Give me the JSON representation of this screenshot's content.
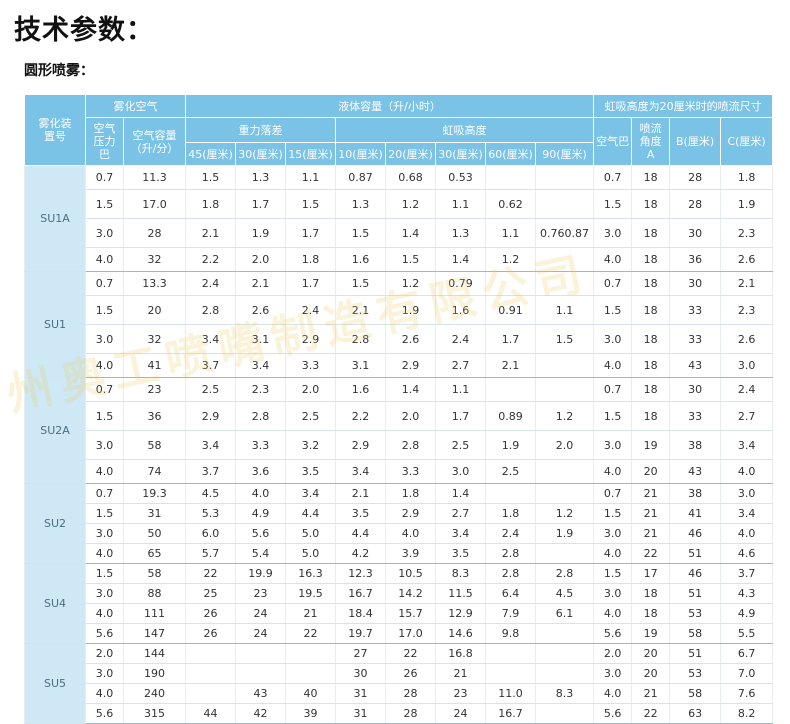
{
  "title": "技术参数：",
  "subtitle": "圆形喷雾：",
  "watermark": "州奥工喷嘴制造有限公司",
  "colors": {
    "header": "#7ac2e6",
    "model_cell": "#cfe8f5",
    "model_text": "#4a6f86"
  },
  "header": {
    "model": "雾化装置号",
    "air_group": "雾化空气",
    "liquid_group": "液体容量（升/小时）",
    "siphon_group": "虹吸高度为20厘米时的喷流尺寸",
    "air_pressure": "空气压力巴",
    "air_volume": "空气容量（升/分）",
    "gravity": "重力落差",
    "siphon": "虹吸高度",
    "gravity_cols": [
      "45(厘米)",
      "30(厘米)",
      "15(厘米)"
    ],
    "siphon_cols": [
      "10(厘米)",
      "20(厘米)",
      "30(厘米)",
      "60(厘米)",
      "90(厘米)"
    ],
    "spray_cols": [
      "空气巴",
      "喷流角度A",
      "B(厘米)",
      "C(厘米)"
    ]
  },
  "groups": [
    {
      "model": "SU1A",
      "rows": [
        [
          "0.7",
          "11.3",
          "1.5",
          "1.3",
          "1.1",
          "0.87",
          "0.68",
          "0.53",
          "",
          "",
          "0.7",
          "18",
          "28",
          "1.8"
        ],
        [
          "1.5",
          "17.0",
          "1.8",
          "1.7",
          "1.5",
          "1.3",
          "1.2",
          "1.1",
          "0.62",
          "",
          "1.5",
          "18",
          "28",
          "1.9"
        ],
        [
          "3.0",
          "28",
          "2.1",
          "1.9",
          "1.7",
          "1.5",
          "1.4",
          "1.3",
          "1.1",
          "0.760.87",
          "3.0",
          "18",
          "30",
          "2.3"
        ],
        [
          "4.0",
          "32",
          "2.2",
          "2.0",
          "1.8",
          "1.6",
          "1.5",
          "1.4",
          "1.2",
          "",
          "4.0",
          "18",
          "36",
          "2.6"
        ]
      ]
    },
    {
      "model": "SU1",
      "rows": [
        [
          "0.7",
          "13.3",
          "2.4",
          "2.1",
          "1.7",
          "1.5",
          "1.2",
          "0.79",
          "",
          "",
          "0.7",
          "18",
          "30",
          "2.1"
        ],
        [
          "1.5",
          "20",
          "2.8",
          "2.6",
          "2.4",
          "2.1",
          "1.9",
          "1.6",
          "0.91",
          "1.1",
          "1.5",
          "18",
          "33",
          "2.3"
        ],
        [
          "3.0",
          "32",
          "3.4",
          "3.1",
          "2.9",
          "2.8",
          "2.6",
          "2.4",
          "1.7",
          "1.5",
          "3.0",
          "18",
          "33",
          "2.6"
        ],
        [
          "4.0",
          "41",
          "3.7",
          "3.4",
          "3.3",
          "3.1",
          "2.9",
          "2.7",
          "2.1",
          "",
          "4.0",
          "18",
          "43",
          "3.0"
        ]
      ]
    },
    {
      "model": "SU2A",
      "rows": [
        [
          "0.7",
          "23",
          "2.5",
          "2.3",
          "2.0",
          "1.6",
          "1.4",
          "1.1",
          "",
          "",
          "0.7",
          "18",
          "30",
          "2.4"
        ],
        [
          "1.5",
          "36",
          "2.9",
          "2.8",
          "2.5",
          "2.2",
          "2.0",
          "1.7",
          "0.89",
          "1.2",
          "1.5",
          "18",
          "33",
          "2.7"
        ],
        [
          "3.0",
          "58",
          "3.4",
          "3.3",
          "3.2",
          "2.9",
          "2.8",
          "2.5",
          "1.9",
          "2.0",
          "3.0",
          "19",
          "38",
          "3.4"
        ],
        [
          "4.0",
          "74",
          "3.7",
          "3.6",
          "3.5",
          "3.4",
          "3.3",
          "3.0",
          "2.5",
          "",
          "4.0",
          "20",
          "43",
          "4.0"
        ]
      ]
    },
    {
      "model": "SU2",
      "rows": [
        [
          "0.7",
          "19.3",
          "4.5",
          "4.0",
          "3.4",
          "2.1",
          "1.8",
          "1.4",
          "",
          "",
          "0.7",
          "21",
          "38",
          "3.0"
        ],
        [
          "1.5",
          "31",
          "5.3",
          "4.9",
          "4.4",
          "3.5",
          "2.9",
          "2.7",
          "1.8",
          "1.2",
          "1.5",
          "21",
          "41",
          "3.4"
        ],
        [
          "3.0",
          "50",
          "6.0",
          "5.6",
          "5.0",
          "4.4",
          "4.0",
          "3.4",
          "2.4",
          "1.9",
          "3.0",
          "21",
          "46",
          "4.0"
        ],
        [
          "4.0",
          "65",
          "5.7",
          "5.4",
          "5.0",
          "4.2",
          "3.9",
          "3.5",
          "2.8",
          "",
          "4.0",
          "22",
          "51",
          "4.6"
        ]
      ]
    },
    {
      "model": "SU4",
      "rows": [
        [
          "1.5",
          "58",
          "22",
          "19.9",
          "16.3",
          "12.3",
          "10.5",
          "8.3",
          "2.8",
          "2.8",
          "1.5",
          "17",
          "46",
          "3.7"
        ],
        [
          "3.0",
          "88",
          "25",
          "23",
          "19.5",
          "16.7",
          "14.2",
          "11.5",
          "6.4",
          "4.5",
          "3.0",
          "18",
          "51",
          "4.3"
        ],
        [
          "4.0",
          "111",
          "26",
          "24",
          "21",
          "18.4",
          "15.7",
          "12.9",
          "7.9",
          "6.1",
          "4.0",
          "18",
          "53",
          "4.9"
        ],
        [
          "5.6",
          "147",
          "26",
          "24",
          "22",
          "19.7",
          "17.0",
          "14.6",
          "9.8",
          "",
          "5.6",
          "19",
          "58",
          "5.5"
        ]
      ]
    },
    {
      "model": "SU5",
      "rows": [
        [
          "2.0",
          "144",
          "",
          "",
          "",
          "27",
          "22",
          "16.8",
          "",
          "",
          "2.0",
          "20",
          "51",
          "6.7"
        ],
        [
          "3.0",
          "190",
          "",
          "",
          "",
          "30",
          "26",
          "21",
          "",
          "",
          "3.0",
          "20",
          "53",
          "7.0"
        ],
        [
          "4.0",
          "240",
          "",
          "43",
          "40",
          "31",
          "28",
          "23",
          "11.0",
          "8.3",
          "4.0",
          "21",
          "58",
          "7.6"
        ],
        [
          "5.6",
          "315",
          "44",
          "42",
          "39",
          "31",
          "28",
          "24",
          "16.7",
          "",
          "5.6",
          "22",
          "63",
          "8.2"
        ]
      ]
    }
  ]
}
